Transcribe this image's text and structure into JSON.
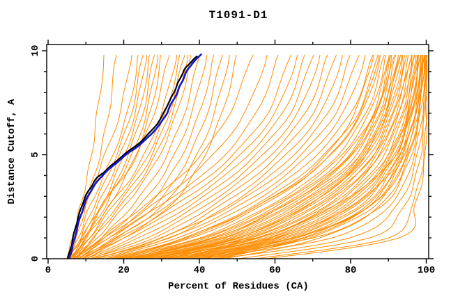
{
  "chart_data": {
    "type": "line",
    "title": "T1091-D1",
    "xlabel": "Percent of Residues (CA)",
    "ylabel": "Distance Cutoff, A",
    "xlim": [
      0,
      100
    ],
    "ylim": [
      0,
      10
    ],
    "x_major_ticks": [
      0,
      20,
      40,
      60,
      80,
      100
    ],
    "x_minor_ticks": [
      10,
      30,
      50,
      70,
      90
    ],
    "y_major_ticks": [
      0,
      5,
      10
    ],
    "y_minor_ticks": [
      1,
      2,
      3,
      4,
      6,
      7,
      8,
      9
    ],
    "grid": false,
    "legend": "none",
    "colors": {
      "model_curves": "#ff8c00",
      "highlight_black": "#000000",
      "highlight_blue": "#1414cc"
    },
    "series_notes": {
      "orange": "many server model cumulative CA-distance curves",
      "black": "highlighted reference model curve",
      "blue": "highlighted model curve (overlaps black)"
    },
    "y_levels": [
      0,
      1,
      2.5,
      4.5,
      7,
      9.8
    ],
    "orange_curves": [
      [
        4.8,
        6.5,
        8.5,
        11,
        13,
        15
      ],
      [
        5,
        7,
        9.5,
        13,
        16,
        18
      ],
      [
        5.2,
        7.5,
        10,
        14,
        19,
        22
      ],
      [
        5.5,
        8,
        11,
        16,
        21,
        24
      ],
      [
        5.5,
        8.5,
        12,
        17,
        22,
        25
      ],
      [
        6,
        9,
        13,
        18,
        23,
        26
      ],
      [
        6,
        9.5,
        14,
        19,
        24,
        27
      ],
      [
        6.5,
        10,
        15,
        20,
        25,
        28
      ],
      [
        6.5,
        10,
        14,
        21,
        26,
        29
      ],
      [
        7,
        11,
        16,
        22,
        27,
        30
      ],
      [
        5.5,
        9,
        14,
        22,
        28,
        32
      ],
      [
        6,
        10,
        16,
        24,
        30,
        34
      ],
      [
        6,
        11,
        17,
        25,
        31,
        35
      ],
      [
        6.5,
        12,
        18,
        26,
        32,
        36
      ],
      [
        7,
        12,
        19,
        27,
        33,
        37
      ],
      [
        7,
        13,
        20,
        28,
        34,
        38
      ],
      [
        7.5,
        14,
        22,
        30,
        36,
        40
      ],
      [
        8,
        15,
        24,
        32,
        38,
        42
      ],
      [
        8,
        16,
        26,
        34,
        40,
        44
      ],
      [
        9,
        17,
        28,
        36,
        42,
        46
      ],
      [
        9,
        18,
        30,
        38,
        44,
        48
      ],
      [
        10,
        20,
        32,
        40,
        46,
        50
      ],
      [
        7,
        14,
        25,
        38,
        48,
        54
      ],
      [
        7,
        15,
        27,
        41,
        52,
        58
      ],
      [
        8,
        16,
        29,
        44,
        55,
        61
      ],
      [
        8,
        18,
        31,
        46,
        58,
        64
      ],
      [
        9,
        19,
        33,
        48,
        60,
        66
      ],
      [
        9,
        20,
        35,
        50,
        62,
        68
      ],
      [
        10,
        22,
        37,
        52,
        64,
        70
      ],
      [
        10,
        24,
        39,
        54,
        66,
        72
      ],
      [
        11,
        26,
        41,
        56,
        68,
        74
      ],
      [
        11,
        28,
        43,
        58,
        70,
        76
      ],
      [
        12,
        30,
        45,
        60,
        72,
        78
      ],
      [
        12,
        32,
        47,
        62,
        74,
        80
      ],
      [
        13,
        30,
        48,
        64,
        76,
        82
      ],
      [
        14,
        32,
        50,
        66,
        78,
        84
      ],
      [
        15,
        34,
        52,
        68,
        80,
        86
      ],
      [
        16,
        36,
        54,
        70,
        82,
        87
      ],
      [
        17,
        38,
        56,
        72,
        83,
        88
      ],
      [
        18,
        40,
        58,
        74,
        84,
        89
      ],
      [
        19,
        42,
        60,
        76,
        86,
        90
      ],
      [
        20,
        44,
        62,
        78,
        87,
        91
      ],
      [
        22,
        46,
        64,
        80,
        88,
        92
      ],
      [
        24,
        48,
        66,
        81,
        89,
        93
      ],
      [
        26,
        50,
        68,
        82,
        90,
        94
      ],
      [
        28,
        52,
        70,
        84,
        91,
        95
      ],
      [
        30,
        54,
        72,
        85,
        92,
        96
      ],
      [
        32,
        56,
        74,
        86,
        93,
        96.5
      ],
      [
        34,
        58,
        76,
        88,
        94,
        97
      ],
      [
        36,
        60,
        78,
        89,
        95,
        97.5
      ],
      [
        38,
        62,
        80,
        90,
        95.5,
        98
      ],
      [
        40,
        64,
        82,
        91,
        96,
        98.5
      ],
      [
        42,
        66,
        84,
        92,
        97,
        99
      ],
      [
        45,
        68,
        85,
        93,
        97.5,
        99.3
      ],
      [
        21,
        43,
        61,
        77,
        86.5,
        90.5
      ],
      [
        23,
        47,
        65,
        80.5,
        88.5,
        92.5
      ],
      [
        27,
        51,
        69,
        83,
        90.5,
        94.5
      ],
      [
        31,
        55,
        73,
        85.5,
        92.5,
        96.2
      ],
      [
        35,
        59,
        77,
        88.5,
        94.5,
        97.2
      ],
      [
        39,
        63,
        81,
        90.5,
        95.7,
        98.2
      ],
      [
        43,
        67,
        84.5,
        92.5,
        97.2,
        99.1
      ],
      [
        18,
        36,
        55,
        71,
        81,
        86
      ],
      [
        19,
        41,
        59,
        75,
        85,
        89.5
      ],
      [
        21,
        45,
        63,
        79,
        87.5,
        91.5
      ],
      [
        25,
        49,
        67,
        81.5,
        89.5,
        93.5
      ],
      [
        29,
        53,
        71,
        84,
        91.5,
        95.5
      ],
      [
        33,
        57,
        75,
        87,
        93.5,
        96.8
      ],
      [
        37,
        61,
        79,
        89.5,
        95,
        97.8
      ],
      [
        41,
        65,
        83,
        91.5,
        96.5,
        98.8
      ],
      [
        44,
        69,
        86,
        93.5,
        97.8,
        99.4
      ],
      [
        17,
        37,
        55,
        72,
        82.5,
        87.5
      ],
      [
        23,
        44,
        62,
        77.5,
        86.5,
        90.8
      ],
      [
        27,
        50,
        68,
        82,
        89,
        93
      ],
      [
        47,
        72,
        87.5,
        94.5,
        98.2,
        99.6
      ],
      [
        20,
        55,
        75,
        90,
        96,
        99
      ],
      [
        25,
        60,
        80,
        92,
        97,
        99.5
      ],
      [
        30,
        65,
        85,
        94,
        98,
        99.7
      ],
      [
        35,
        70,
        88,
        95,
        98.5,
        99.8
      ],
      [
        40,
        75,
        90,
        96,
        99,
        100
      ],
      [
        45,
        80,
        92,
        97,
        99.3,
        100
      ],
      [
        50,
        85,
        94,
        98,
        99.6,
        100
      ],
      [
        55,
        90,
        96,
        99,
        100,
        100
      ],
      [
        58,
        93,
        97,
        99.5,
        100,
        100
      ]
    ],
    "black_curve": [
      [
        5.2,
        0
      ],
      [
        5.8,
        0.4
      ],
      [
        6.5,
        0.9
      ],
      [
        7.2,
        1.5
      ],
      [
        8.2,
        2.1
      ],
      [
        9.0,
        2.6
      ],
      [
        10.2,
        3.1
      ],
      [
        11.5,
        3.5
      ],
      [
        13.0,
        3.9
      ],
      [
        15.0,
        4.2
      ],
      [
        17.5,
        4.6
      ],
      [
        20.0,
        5.0
      ],
      [
        23.0,
        5.4
      ],
      [
        25.5,
        5.8
      ],
      [
        28.0,
        6.3
      ],
      [
        30.0,
        6.8
      ],
      [
        31.0,
        7.2
      ],
      [
        32.5,
        7.7
      ],
      [
        33.5,
        8.1
      ],
      [
        34.5,
        8.5
      ],
      [
        35.5,
        8.9
      ],
      [
        36.5,
        9.2
      ],
      [
        38.0,
        9.5
      ],
      [
        39.5,
        9.75
      ]
    ],
    "blue_curve": [
      [
        5.5,
        0
      ],
      [
        6.2,
        0.4
      ],
      [
        6.9,
        0.9
      ],
      [
        7.7,
        1.5
      ],
      [
        8.7,
        2.1
      ],
      [
        9.6,
        2.6
      ],
      [
        10.8,
        3.1
      ],
      [
        12.2,
        3.5
      ],
      [
        13.8,
        3.9
      ],
      [
        15.8,
        4.25
      ],
      [
        18.3,
        4.65
      ],
      [
        21.0,
        5.05
      ],
      [
        24.0,
        5.45
      ],
      [
        26.5,
        5.85
      ],
      [
        29.0,
        6.35
      ],
      [
        31.0,
        6.85
      ],
      [
        32.0,
        7.25
      ],
      [
        33.5,
        7.75
      ],
      [
        34.5,
        8.15
      ],
      [
        35.5,
        8.55
      ],
      [
        36.5,
        8.95
      ],
      [
        37.5,
        9.25
      ],
      [
        39.0,
        9.55
      ],
      [
        40.5,
        9.85
      ]
    ]
  }
}
